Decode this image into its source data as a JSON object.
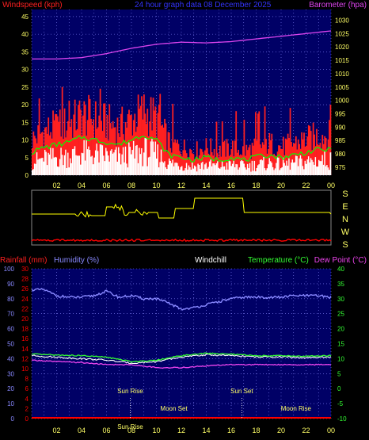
{
  "title": "24 hour graph data  08 December 2025",
  "colors": {
    "wind_gust": "#ff2020",
    "wind_avg": "#00ff00",
    "wind_white": "#ffffff",
    "barometer": "#dd44ee",
    "direction": "#ffff00",
    "rain_small": "#ff0000",
    "humidity": "#8888ff",
    "temperature": "#33ff33",
    "dewpoint": "#ee44ee",
    "windchill": "#ffffff",
    "plot_bg": "#000066",
    "grid": "#8888ff",
    "tick_text": "#ffff66"
  },
  "time_ticks": [
    "02",
    "04",
    "06",
    "08",
    "10",
    "12",
    "14",
    "16",
    "18",
    "20",
    "22",
    "00"
  ],
  "top_panel": {
    "left_label": "Windspeed (kph)",
    "right_label": "Barometer (hpa)",
    "left_ticks": [
      "0",
      "5",
      "10",
      "15",
      "20",
      "25",
      "30",
      "35",
      "40",
      "45"
    ],
    "right_ticks": [
      "975",
      "980",
      "985",
      "990",
      "995",
      "1000",
      "1005",
      "1010",
      "1015",
      "1020",
      "1025",
      "1030"
    ]
  },
  "direction_panel": {
    "letters": [
      "S",
      "E",
      "N",
      "W",
      "S"
    ]
  },
  "bottom_panel": {
    "label_rainfall": "Rainfall (mm)",
    "label_humidity": "Humidity (%)",
    "label_windchill": "Windchill",
    "label_temperature": "Temperature (°C)",
    "label_dewpoint": "Dew Point (°C)",
    "humidity_ticks": [
      "0",
      "10",
      "20",
      "30",
      "40",
      "50",
      "60",
      "70",
      "80",
      "90",
      "100"
    ],
    "rain_ticks": [
      "0",
      "2",
      "4",
      "6",
      "8",
      "10",
      "12",
      "14",
      "16",
      "18",
      "20",
      "22",
      "24",
      "26",
      "28",
      "30"
    ],
    "temp_ticks": [
      "-10",
      "-5",
      "0",
      "5",
      "10",
      "15",
      "20",
      "25",
      "30",
      "35",
      "40"
    ],
    "events": [
      {
        "label": "Sun Rise",
        "hour": 7.9,
        "row": 0
      },
      {
        "label": "Sun Set",
        "hour": 16.85,
        "row": 0
      },
      {
        "label": "Moon Set",
        "hour": 11.4,
        "row": 1
      },
      {
        "label": "Moon Rise",
        "hour": 21.2,
        "row": 1
      },
      {
        "label": "Sun Rise",
        "hour": 7.9,
        "row": 2
      }
    ]
  },
  "chart_data": [
    {
      "type": "line",
      "title": "",
      "x_unit": "hours",
      "xlim": [
        0,
        24
      ],
      "left_axis": {
        "label": "Windspeed (kph)",
        "ylim": [
          0,
          47
        ]
      },
      "right_axis": {
        "label": "Barometer (hpa)",
        "ylim": [
          972,
          1034
        ]
      },
      "series": [
        {
          "name": "Windspeed (kph)",
          "axis": "left",
          "x": [
            0,
            1,
            2,
            3,
            4,
            5,
            6,
            7,
            8,
            9,
            10,
            11,
            12,
            13,
            14,
            15,
            16,
            17,
            18,
            19,
            20,
            21,
            22,
            23,
            24
          ],
          "values": [
            9,
            11,
            12,
            13,
            15,
            14,
            13,
            12,
            14,
            16,
            14,
            8,
            7,
            6,
            7,
            6,
            7,
            6,
            7,
            8,
            7,
            8,
            9,
            10,
            10
          ]
        },
        {
          "name": "Barometer (hpa)",
          "axis": "right",
          "x": [
            0,
            2,
            4,
            6,
            8,
            10,
            12,
            14,
            16,
            18,
            20,
            22,
            24
          ],
          "values": [
            1015.5,
            1015.5,
            1016,
            1017.5,
            1019.5,
            1021,
            1021.8,
            1021.5,
            1022,
            1023,
            1024,
            1025,
            1026
          ]
        }
      ]
    },
    {
      "type": "line",
      "title": "",
      "x_unit": "hours",
      "xlim": [
        0,
        24
      ],
      "humidity_axis": {
        "label": "Humidity (%)",
        "ylim": [
          0,
          100
        ]
      },
      "rain_axis": {
        "label": "Rainfall (mm)",
        "ylim": [
          0,
          30
        ]
      },
      "temp_axis": {
        "label": "Temperature (°C)",
        "ylim": [
          -10,
          40
        ]
      },
      "series": [
        {
          "name": "Humidity (%)",
          "axis": "humidity",
          "x": [
            0,
            1,
            2,
            3,
            4,
            5,
            6,
            7,
            8,
            9,
            10,
            11,
            12,
            13,
            14,
            15,
            16,
            17,
            18,
            19,
            20,
            21,
            22,
            23,
            24
          ],
          "values": [
            86,
            86,
            82,
            81,
            81,
            82,
            85,
            81,
            82,
            80,
            80,
            77,
            73,
            74,
            76,
            78,
            80,
            81,
            81,
            81,
            81,
            82,
            82,
            82,
            81
          ]
        },
        {
          "name": "Temperature (°C)",
          "axis": "temp",
          "x": [
            0,
            2,
            4,
            6,
            8,
            10,
            12,
            14,
            16,
            18,
            20,
            22,
            24
          ],
          "values": [
            11.5,
            11.2,
            11,
            10.5,
            9,
            9.5,
            11,
            11.8,
            11.5,
            11,
            11,
            10.8,
            11
          ]
        },
        {
          "name": "Windchill",
          "axis": "temp",
          "x": [
            0,
            2,
            4,
            6,
            8,
            10,
            12,
            14,
            16,
            18,
            20,
            22,
            24
          ],
          "values": [
            11,
            10.5,
            10,
            9.5,
            8.5,
            9,
            10.5,
            11.3,
            11,
            10.6,
            10.6,
            10.3,
            10.5
          ]
        },
        {
          "name": "Dew Point (°C)",
          "axis": "temp",
          "x": [
            0,
            2,
            4,
            6,
            8,
            10,
            12,
            14,
            16,
            18,
            20,
            22,
            24
          ],
          "values": [
            9.5,
            9,
            8.7,
            8,
            8,
            7,
            7,
            7.6,
            8,
            8,
            8,
            8,
            8
          ]
        },
        {
          "name": "Rainfall (mm)",
          "axis": "rain",
          "x": [
            0,
            24
          ],
          "values": [
            0,
            0
          ]
        }
      ]
    }
  ]
}
